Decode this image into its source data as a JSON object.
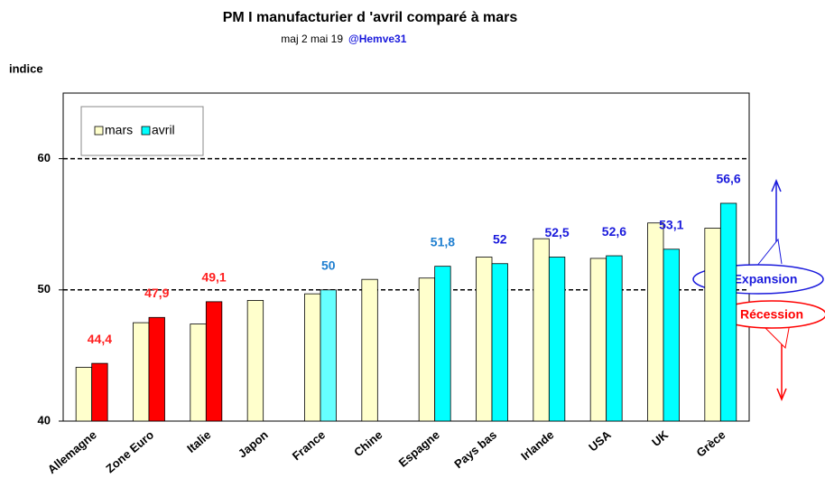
{
  "chart_data": {
    "type": "bar",
    "title": "PM I   manufacturier  d 'avril  comparé à mars",
    "subtitle": "maj  2 mai 19",
    "subtitle_handle": "@Hemve31",
    "y_axis_label": "indice",
    "categories": [
      "Allemagne",
      "Zone Euro",
      "Italie",
      "Japon",
      "France",
      "Chine",
      "Espagne",
      "Pays bas",
      "Irlande",
      "USA",
      "UK",
      "Grèce"
    ],
    "series": [
      {
        "name": "mars",
        "color": "#ffffcc",
        "values": [
          44.1,
          47.5,
          47.4,
          49.2,
          49.7,
          50.8,
          50.9,
          52.5,
          53.9,
          52.4,
          55.1,
          54.7
        ]
      },
      {
        "name": "avril",
        "color": "#00ffff",
        "colors": [
          "#ff0000",
          "#ff0000",
          "#ff0000",
          null,
          "#66ffff",
          null,
          "#00ffff",
          "#00ffff",
          "#00ffff",
          "#00ffff",
          "#00ffff",
          "#00ffff"
        ],
        "values": [
          44.4,
          47.9,
          49.1,
          null,
          50,
          null,
          51.8,
          52,
          52.5,
          52.6,
          53.1,
          56.6
        ],
        "value_labels": [
          "44,4",
          "47,9",
          "49,1",
          null,
          "50",
          null,
          "51,8",
          "52",
          "52,5",
          "52,6",
          "53,1",
          "56,6"
        ],
        "label_colors": [
          "#ff2020",
          "#ff2020",
          "#ff2020",
          null,
          "#1f7fd0",
          null,
          "#1f7fd0",
          "#1a1adc",
          "#1a1adc",
          "#1a1adc",
          "#1a1adc",
          "#1a1adc"
        ]
      }
    ],
    "ylim": [
      40,
      65
    ],
    "yticks": [
      40,
      50,
      60
    ],
    "grid": true,
    "legend": "top-left",
    "annotations": [
      "Expansion",
      "Récession"
    ]
  }
}
